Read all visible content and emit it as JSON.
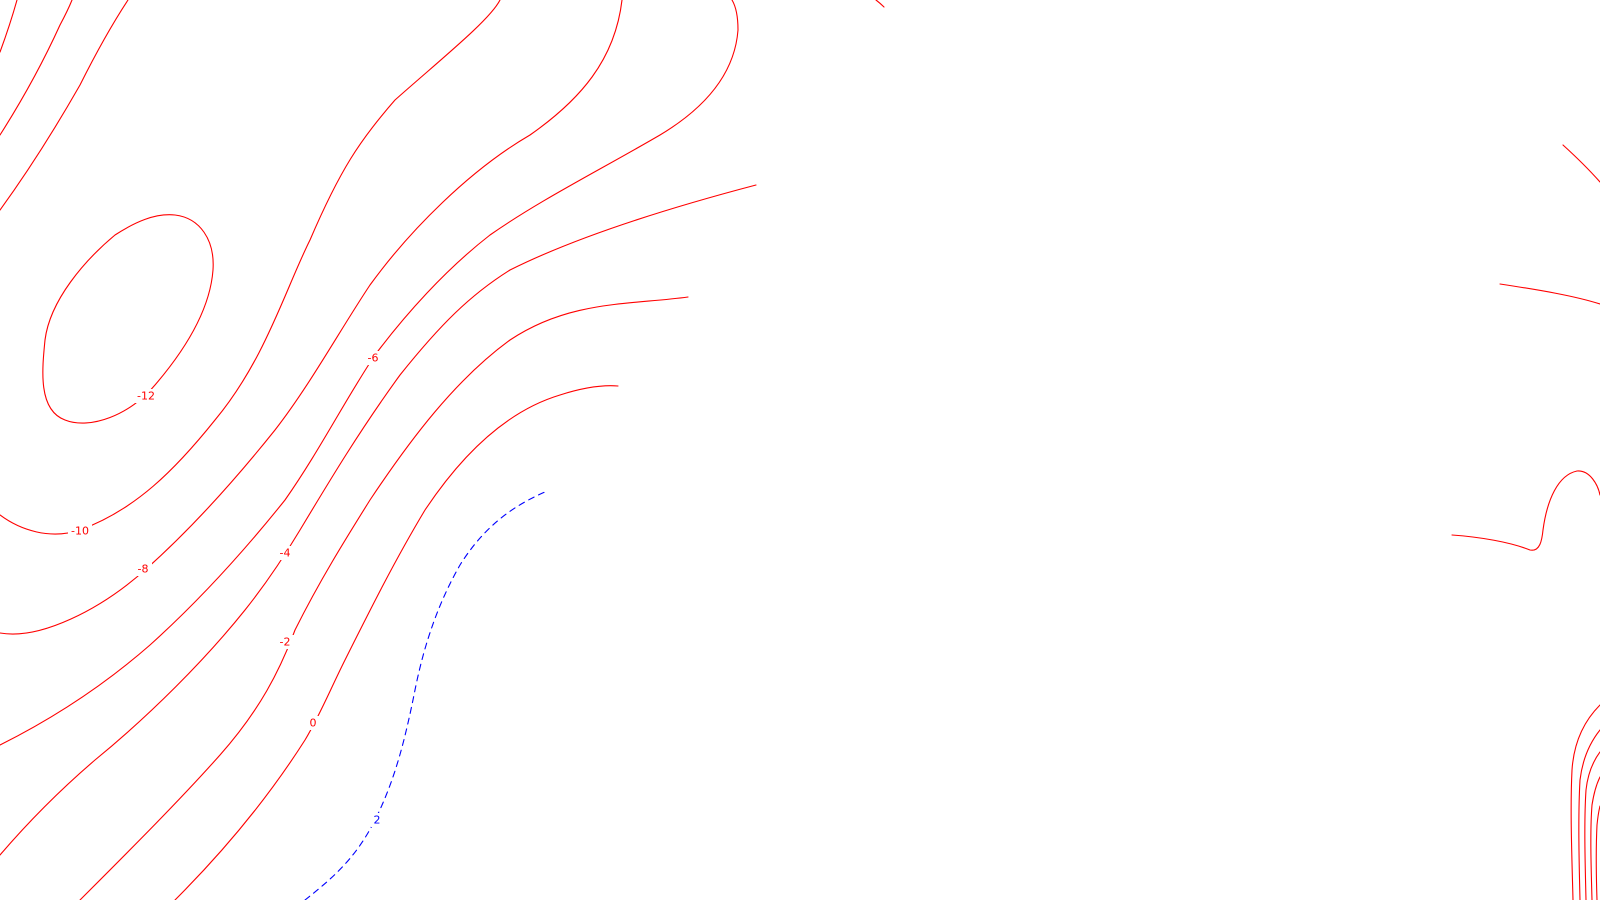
{
  "colors": {
    "negative_contour": "#ff0000",
    "positive_contour": "#0000ff",
    "background": "#ffffff"
  },
  "contour_labels": {
    "minus12": "-12",
    "minus10": "-10",
    "minus8": "-8",
    "minus6": "-6",
    "minus4": "-4",
    "minus2": "-2",
    "zero": "0",
    "plus2": "2"
  },
  "line_styles": {
    "negative": "solid",
    "zero": "solid",
    "positive": "dashed"
  }
}
